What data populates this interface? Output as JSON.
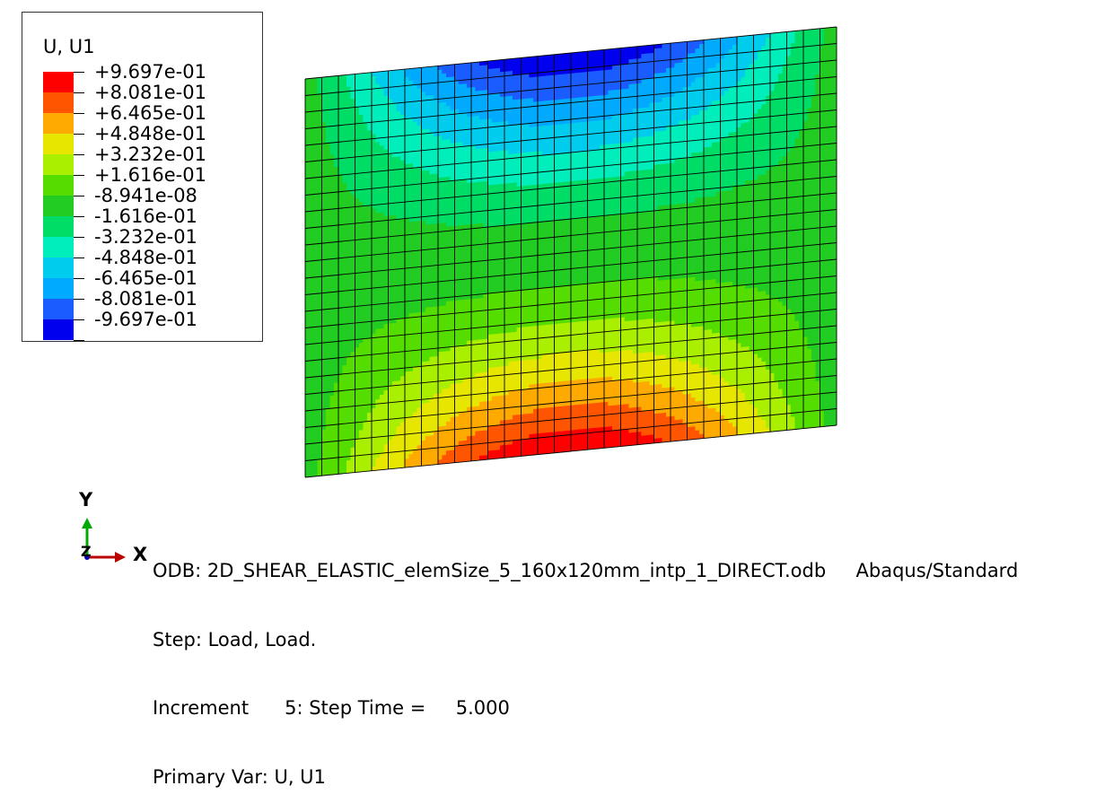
{
  "legend": {
    "title": "U, U1",
    "entries": [
      {
        "label": "+9.697e-01",
        "color": "#ff0000"
      },
      {
        "label": "+8.081e-01",
        "color": "#ff5500"
      },
      {
        "label": "+6.465e-01",
        "color": "#ffaa00"
      },
      {
        "label": "+4.848e-01",
        "color": "#e6e600"
      },
      {
        "label": "+3.232e-01",
        "color": "#aaee00"
      },
      {
        "label": "+1.616e-01",
        "color": "#55dd00"
      },
      {
        "label": "-8.941e-08",
        "color": "#22cc22"
      },
      {
        "label": "-1.616e-01",
        "color": "#00dd66"
      },
      {
        "label": "-3.232e-01",
        "color": "#00eebb"
      },
      {
        "label": "-4.848e-01",
        "color": "#00ccee"
      },
      {
        "label": "-6.465e-01",
        "color": "#00aaff"
      },
      {
        "label": "-8.081e-01",
        "color": "#1a5cff"
      },
      {
        "label": "-9.697e-01",
        "color": "#0000ee"
      }
    ]
  },
  "triad": {
    "y_label": "Y",
    "x_label": "X",
    "z_label": "Z"
  },
  "info": {
    "odb": "ODB: 2D_SHEAR_ELASTIC_elemSize_5_160x120mm_intp_1_DIRECT.odb     Abaqus/Standard",
    "step": "Step: Load, Load.",
    "increment": "Increment      5: Step Time =     5.000",
    "primary_var": "Primary Var: U, U1"
  },
  "mesh": {
    "columns": 32,
    "rows": 24
  }
}
